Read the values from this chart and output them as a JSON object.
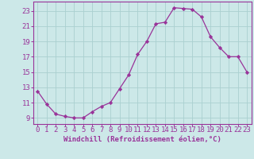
{
  "x": [
    0,
    1,
    2,
    3,
    4,
    5,
    6,
    7,
    8,
    9,
    10,
    11,
    12,
    13,
    14,
    15,
    16,
    17,
    18,
    19,
    20,
    21,
    22,
    23
  ],
  "y": [
    12.5,
    10.8,
    9.5,
    9.2,
    9.0,
    9.0,
    9.8,
    10.5,
    11.0,
    12.8,
    14.6,
    17.3,
    19.0,
    21.3,
    21.5,
    23.4,
    23.3,
    23.2,
    22.2,
    19.6,
    18.2,
    17.0,
    17.0,
    15.0
  ],
  "line_color": "#993399",
  "marker": "D",
  "marker_size": 2.2,
  "background_color": "#cce8e8",
  "grid_color": "#aad0d0",
  "xlabel": "Windchill (Refroidissement éolien,°C)",
  "xlim": [
    -0.5,
    23.5
  ],
  "ylim": [
    8.2,
    24.2
  ],
  "xticks": [
    0,
    1,
    2,
    3,
    4,
    5,
    6,
    7,
    8,
    9,
    10,
    11,
    12,
    13,
    14,
    15,
    16,
    17,
    18,
    19,
    20,
    21,
    22,
    23
  ],
  "yticks": [
    9,
    11,
    13,
    15,
    17,
    19,
    21,
    23
  ],
  "tick_color": "#993399",
  "label_color": "#993399",
  "axis_color": "#993399",
  "xlabel_fontsize": 6.5,
  "tick_fontsize": 6.5
}
